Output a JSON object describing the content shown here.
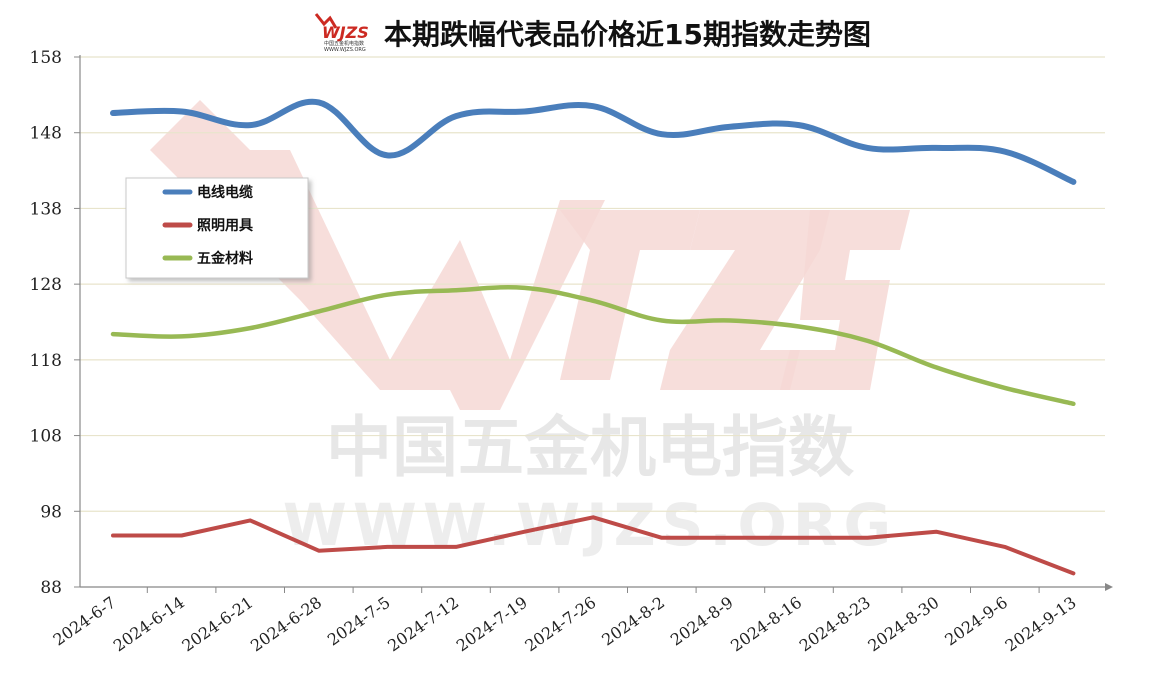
{
  "watermark": {
    "brand": "WJZS",
    "chinese": "中国五金机电指数",
    "url": "WWW.WJZS.ORG"
  },
  "logo": {
    "brand": "WJZS",
    "subtitle": "中国五金机电指数",
    "url": "WWW.WJZS.ORG"
  },
  "colors": {
    "series_1": "#4a7ebb",
    "series_2": "#be4b48",
    "series_3": "#98b954",
    "watermark": "#f2c9c6",
    "grid": "#e8e4cc"
  },
  "chart_data": {
    "type": "line",
    "title": "本期跌幅代表品价格近15期指数走势图",
    "xlabel": "",
    "ylabel": "",
    "ylim": [
      88,
      158
    ],
    "yticks": [
      88,
      98,
      108,
      118,
      128,
      138,
      148,
      158
    ],
    "grid": true,
    "legend_position": "left",
    "categories": [
      "2024-6-7",
      "2024-6-14",
      "2024-6-21",
      "2024-6-28",
      "2024-7-5",
      "2024-7-12",
      "2024-7-19",
      "2024-7-26",
      "2024-8-2",
      "2024-8-9",
      "2024-8-16",
      "2024-8-23",
      "2024-8-30",
      "2024-9-6",
      "2024-9-13"
    ],
    "series": [
      {
        "name": "电线电缆",
        "values": [
          150.6,
          150.8,
          149.0,
          152.0,
          145.0,
          150.2,
          150.8,
          151.5,
          147.8,
          148.8,
          149.0,
          146.0,
          146.0,
          145.5,
          141.5
        ]
      },
      {
        "name": "照明用具",
        "values": [
          94.8,
          94.8,
          96.8,
          92.8,
          93.3,
          93.3,
          95.3,
          97.2,
          94.5,
          94.5,
          94.5,
          94.5,
          95.3,
          93.3,
          89.8
        ]
      },
      {
        "name": "五金材料",
        "values": [
          121.4,
          121.1,
          122.2,
          124.4,
          126.6,
          127.2,
          127.5,
          125.8,
          123.2,
          123.2,
          122.4,
          120.5,
          117.0,
          114.3,
          112.2
        ]
      }
    ]
  }
}
